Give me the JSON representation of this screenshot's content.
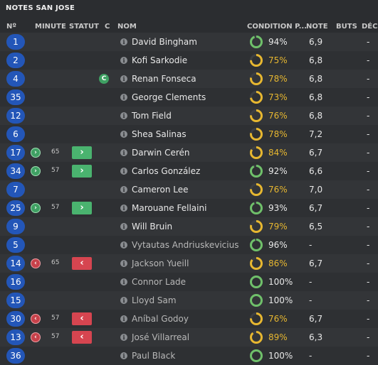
{
  "panel": {
    "title": "NOTES SAN JOSE"
  },
  "columns": {
    "number": "Nº",
    "minute": "MINUTE",
    "status": "STATUT",
    "captain": "C",
    "name": "NOM",
    "condition": "CONDITION P...",
    "rating": "NOTE",
    "goals": "BUTS",
    "dec": "DÉC"
  },
  "colors": {
    "good_condition": "#6fc06a",
    "mid_condition": "#e7b730",
    "sub_in": "#4ab36f",
    "sub_out": "#d64550",
    "shirt": "#2356b8"
  },
  "icons": {
    "info": "info-icon",
    "sub_in": "chevron-right-icon",
    "sub_out": "chevron-left-icon",
    "captain": "captain-badge-icon"
  },
  "players": [
    {
      "number": "1",
      "movement": "",
      "minute": "",
      "status": "",
      "captain": "",
      "info": "i",
      "name": "David Bingham",
      "condition": "94%",
      "condition_value": 0.94,
      "tone": "good",
      "rating": "6,9",
      "goals": "",
      "dec": "-",
      "dim": false
    },
    {
      "number": "2",
      "movement": "",
      "minute": "",
      "status": "",
      "captain": "",
      "info": "i",
      "name": "Kofi Sarkodie",
      "condition": "75%",
      "condition_value": 0.75,
      "tone": "mid",
      "rating": "6,8",
      "goals": "",
      "dec": "-",
      "dim": false
    },
    {
      "number": "4",
      "movement": "",
      "minute": "",
      "status": "",
      "captain": "C",
      "info": "i",
      "name": "Renan Fonseca",
      "condition": "78%",
      "condition_value": 0.78,
      "tone": "mid",
      "rating": "6,8",
      "goals": "",
      "dec": "-",
      "dim": false
    },
    {
      "number": "35",
      "movement": "",
      "minute": "",
      "status": "",
      "captain": "",
      "info": "i",
      "name": "George Clements",
      "condition": "73%",
      "condition_value": 0.73,
      "tone": "mid",
      "rating": "6,8",
      "goals": "",
      "dec": "-",
      "dim": false
    },
    {
      "number": "12",
      "movement": "",
      "minute": "",
      "status": "",
      "captain": "",
      "info": "i",
      "name": "Tom Field",
      "condition": "76%",
      "condition_value": 0.76,
      "tone": "mid",
      "rating": "6,8",
      "goals": "",
      "dec": "-",
      "dim": false
    },
    {
      "number": "6",
      "movement": "",
      "minute": "",
      "status": "",
      "captain": "",
      "info": "i",
      "name": "Shea Salinas",
      "condition": "78%",
      "condition_value": 0.78,
      "tone": "mid",
      "rating": "7,2",
      "goals": "",
      "dec": "-",
      "dim": false
    },
    {
      "number": "17",
      "movement": "in",
      "minute": "65",
      "status": "in",
      "captain": "",
      "info": "i",
      "name": "Darwin Cerén",
      "condition": "84%",
      "condition_value": 0.84,
      "tone": "mid",
      "rating": "6,7",
      "goals": "",
      "dec": "-",
      "dim": false
    },
    {
      "number": "34",
      "movement": "in",
      "minute": "57",
      "status": "in",
      "captain": "",
      "info": "i",
      "name": "Carlos González",
      "condition": "92%",
      "condition_value": 0.92,
      "tone": "good",
      "rating": "6,6",
      "goals": "",
      "dec": "-",
      "dim": false
    },
    {
      "number": "7",
      "movement": "",
      "minute": "",
      "status": "",
      "captain": "",
      "info": "i",
      "name": "Cameron Lee",
      "condition": "76%",
      "condition_value": 0.76,
      "tone": "mid",
      "rating": "7,0",
      "goals": "",
      "dec": "-",
      "dim": false
    },
    {
      "number": "25",
      "movement": "in",
      "minute": "57",
      "status": "in",
      "captain": "",
      "info": "i",
      "name": "Marouane Fellaini",
      "condition": "93%",
      "condition_value": 0.93,
      "tone": "good",
      "rating": "6,7",
      "goals": "",
      "dec": "-",
      "dim": false
    },
    {
      "number": "9",
      "movement": "",
      "minute": "",
      "status": "",
      "captain": "",
      "info": "i",
      "name": "Will Bruin",
      "condition": "79%",
      "condition_value": 0.79,
      "tone": "mid",
      "rating": "6,5",
      "goals": "",
      "dec": "-",
      "dim": false
    },
    {
      "number": "5",
      "movement": "",
      "minute": "",
      "status": "",
      "captain": "",
      "info": "i",
      "name": "Vytautas Andriuskevicius",
      "condition": "96%",
      "condition_value": 0.96,
      "tone": "good",
      "rating": "-",
      "goals": "",
      "dec": "-",
      "dim": true
    },
    {
      "number": "14",
      "movement": "out",
      "minute": "65",
      "status": "out",
      "captain": "",
      "info": "i",
      "name": "Jackson Yueill",
      "condition": "86%",
      "condition_value": 0.86,
      "tone": "mid",
      "rating": "6,7",
      "goals": "",
      "dec": "-",
      "dim": true
    },
    {
      "number": "16",
      "movement": "",
      "minute": "",
      "status": "",
      "captain": "",
      "info": "i",
      "name": "Connor Lade",
      "condition": "100%",
      "condition_value": 1.0,
      "tone": "good",
      "rating": "-",
      "goals": "",
      "dec": "-",
      "dim": true
    },
    {
      "number": "15",
      "movement": "",
      "minute": "",
      "status": "",
      "captain": "",
      "info": "i",
      "name": "Lloyd Sam",
      "condition": "100%",
      "condition_value": 1.0,
      "tone": "good",
      "rating": "-",
      "goals": "",
      "dec": "-",
      "dim": true
    },
    {
      "number": "30",
      "movement": "out",
      "minute": "57",
      "status": "out",
      "captain": "",
      "info": "i",
      "name": "Aníbal Godoy",
      "condition": "76%",
      "condition_value": 0.76,
      "tone": "mid",
      "rating": "6,7",
      "goals": "",
      "dec": "-",
      "dim": true
    },
    {
      "number": "13",
      "movement": "out",
      "minute": "57",
      "status": "out",
      "captain": "",
      "info": "i",
      "name": "José Villarreal",
      "condition": "89%",
      "condition_value": 0.89,
      "tone": "mid",
      "rating": "6,3",
      "goals": "",
      "dec": "-",
      "dim": true
    },
    {
      "number": "36",
      "movement": "",
      "minute": "",
      "status": "",
      "captain": "",
      "info": "i",
      "name": "Paul Black",
      "condition": "100%",
      "condition_value": 1.0,
      "tone": "good",
      "rating": "-",
      "goals": "",
      "dec": "-",
      "dim": true
    }
  ]
}
